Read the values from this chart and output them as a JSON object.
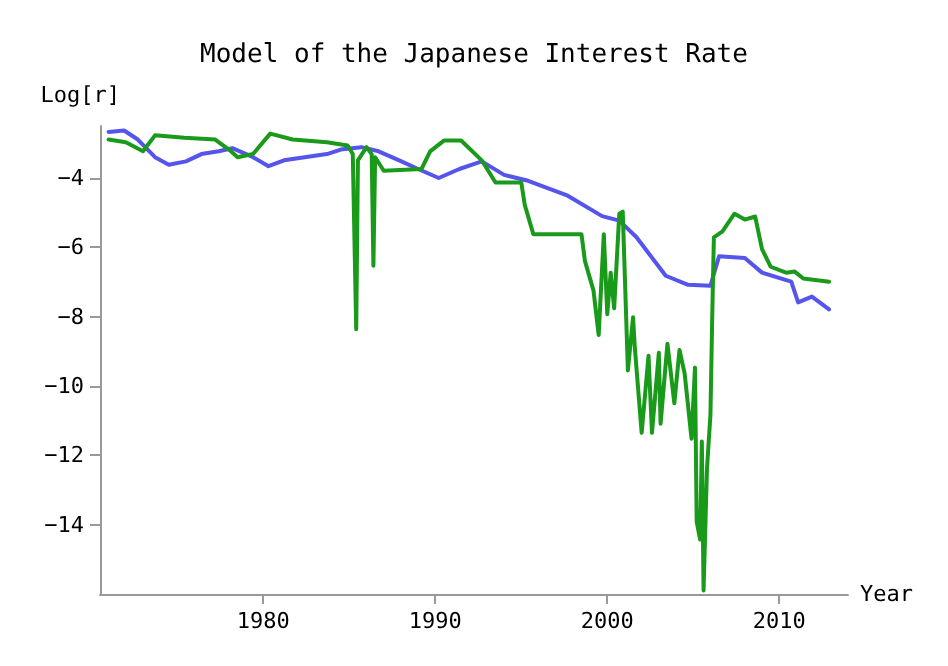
{
  "chart_data": {
    "type": "line",
    "title": "Model of the Japanese Interest Rate",
    "xlabel": "Year",
    "ylabel": "Log[r]",
    "xlim": [
      1970.5,
      2014
    ],
    "xticks": [
      1980,
      1990,
      2000,
      2010
    ],
    "ylim": [
      -16,
      -2.5
    ],
    "yticks": [
      -4,
      -6,
      -8,
      -10,
      -12,
      -14
    ],
    "grid": false,
    "marker": "none",
    "line_style": "solid",
    "series": [
      {
        "color": "#5555ee",
        "x": [
          1971.0,
          1971.9,
          1972.7,
          1973.7,
          1974.5,
          1975.5,
          1976.4,
          1977.4,
          1978.2,
          1979.4,
          1980.3,
          1981.2,
          1982.4,
          1983.7,
          1984.5,
          1985.7,
          1986.7,
          1987.9,
          1989.0,
          1990.2,
          1991.4,
          1992.4,
          1992.7,
          1994.0,
          1995.4,
          1997.7,
          1999.7,
          2000.7,
          2001.7,
          2003.4,
          2004.7,
          2006.0,
          2006.5,
          2008.0,
          2009.0,
          2010.7,
          2011.1,
          2011.9,
          2012.9
        ],
        "values": [
          -2.67,
          -2.63,
          -2.89,
          -3.4,
          -3.62,
          -3.52,
          -3.31,
          -3.23,
          -3.14,
          -3.4,
          -3.66,
          -3.49,
          -3.4,
          -3.31,
          -3.18,
          -3.11,
          -3.23,
          -3.49,
          -3.74,
          -4.0,
          -3.74,
          -3.57,
          -3.52,
          -3.91,
          -4.08,
          -4.51,
          -5.1,
          -5.23,
          -5.71,
          -6.82,
          -7.08,
          -7.11,
          -6.26,
          -6.31,
          -6.73,
          -6.99,
          -7.59,
          -7.42,
          -7.79
        ]
      },
      {
        "color": "#1a9a1a",
        "x": [
          1971.0,
          1972.0,
          1973.0,
          1973.7,
          1975.4,
          1977.2,
          1978.0,
          1978.5,
          1979.4,
          1980.4,
          1981.7,
          1983.7,
          1984.9,
          1985.2,
          1985.4,
          1985.5,
          1986.0,
          1986.3,
          1986.4,
          1986.5,
          1987.0,
          1989.2,
          1989.7,
          1990.5,
          1991.5,
          1992.7,
          1993.5,
          1995.0,
          1995.2,
          1995.7,
          1998.5,
          1998.7,
          1999.2,
          1999.5,
          1999.8,
          2000.0,
          2000.2,
          2000.4,
          2000.7,
          2000.9,
          2001.2,
          2001.5,
          2001.6,
          2002.0,
          2002.4,
          2002.6,
          2003.0,
          2003.1,
          2003.5,
          2003.9,
          2004.2,
          2004.5,
          2004.9,
          2005.1,
          2005.2,
          2005.4,
          2005.5,
          2005.6,
          2005.8,
          2006.0,
          2006.1,
          2006.2,
          2006.7,
          2007.4,
          2008.0,
          2008.6,
          2009.0,
          2009.5,
          2010.4,
          2010.9,
          2011.4,
          2012.9
        ],
        "values": [
          -2.89,
          -2.97,
          -3.23,
          -2.77,
          -2.84,
          -2.89,
          -3.18,
          -3.4,
          -3.31,
          -2.72,
          -2.89,
          -2.97,
          -3.06,
          -3.31,
          -8.36,
          -3.49,
          -3.11,
          -3.31,
          -6.53,
          -3.4,
          -3.79,
          -3.74,
          -3.23,
          -2.92,
          -2.92,
          -3.49,
          -4.13,
          -4.13,
          -4.77,
          -5.62,
          -5.62,
          -6.39,
          -7.25,
          -8.53,
          -5.62,
          -7.93,
          -6.73,
          -7.76,
          -5.03,
          -4.97,
          -9.55,
          -8.02,
          -8.87,
          -11.35,
          -9.13,
          -11.35,
          -9.04,
          -11.09,
          -8.78,
          -10.5,
          -8.96,
          -9.64,
          -11.52,
          -9.47,
          -13.91,
          -14.43,
          -11.6,
          -15.9,
          -12.37,
          -10.83,
          -8.1,
          -5.71,
          -5.54,
          -5.03,
          -5.2,
          -5.11,
          -6.05,
          -6.56,
          -6.73,
          -6.7,
          -6.9,
          -6.99
        ]
      }
    ]
  }
}
